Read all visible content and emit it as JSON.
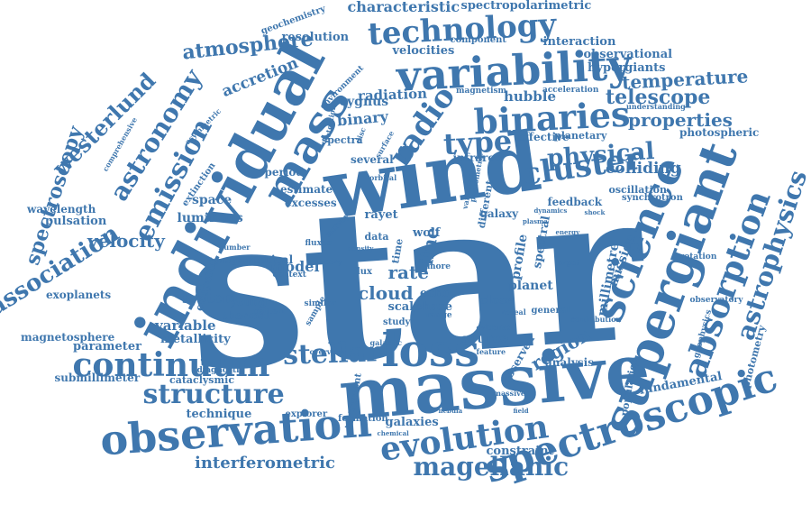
{
  "colors": {
    "word": "#3f77ae",
    "background": "#ffffff"
  },
  "words": [
    "star",
    "wind",
    "individual",
    "massive",
    "variability",
    "binaries",
    "spectroscopic",
    "supergiant",
    "observation",
    "evolution",
    "loss",
    "continuum",
    "stellar",
    "mass",
    "technology",
    "science",
    "absorption",
    "astrophysics",
    "emission",
    "astronomy",
    "cluster",
    "type",
    "physical",
    "radio",
    "magellanic",
    "structure",
    "westerlund",
    "association",
    "spectroscopy",
    "atmosphere",
    "telescope",
    "temperature",
    "properties",
    "region",
    "interferometric",
    "rate",
    "line",
    "cloud",
    "source",
    "velocity",
    "colliding",
    "binary",
    "radiation",
    "hubble",
    "cygnus",
    "accretion",
    "resolution",
    "characteristic",
    "spectropolarimetric",
    "interaction",
    "observational",
    "hypergiants",
    "velocities",
    "photospheric",
    "model",
    "system",
    "variable",
    "parameter",
    "metallicity",
    "magnetosphere",
    "submillimeter",
    "cataclysmic",
    "technique",
    "galaxies",
    "constraint",
    "fundamental",
    "photometry",
    "millimetre",
    "mission",
    "planet",
    "profile",
    "echo",
    "phase",
    "scale",
    "close",
    "spectral",
    "space",
    "luminous",
    "pulsation",
    "wavelength",
    "exoplanets",
    "eclipsing",
    "optical",
    "thermal",
    "young",
    "period",
    "estimate",
    "excesses",
    "rayet",
    "wolf",
    "data",
    "time",
    "infrared",
    "effective",
    "planetary",
    "population",
    "analysis",
    "observed",
    "several",
    "different",
    "galaxy",
    "feedback",
    "oscillation",
    "synchrotron",
    "extinction",
    "geochemistry",
    "component",
    "magnetism",
    "acceleration",
    "environment",
    "spectra",
    "asymmetric",
    "comprehensive",
    "general",
    "study",
    "explorer",
    "formation",
    "flux",
    "instrument",
    "diagnostic",
    "geophysics",
    "observatory",
    "rotation",
    "contribution",
    "understanding",
    "pattern",
    "magnetic",
    "context",
    "similar",
    "galactic",
    "overview",
    "number",
    "sample",
    "theory",
    "detection",
    "fluxes",
    "more",
    "range",
    "feature",
    "evidence",
    "reveal",
    "survey",
    "disc",
    "surface",
    "orbital",
    "massive",
    "variation",
    "photometric",
    "target",
    "dynamics",
    "shock",
    "plasma",
    "energy",
    "density",
    "chemical",
    "field",
    "nebula"
  ]
}
